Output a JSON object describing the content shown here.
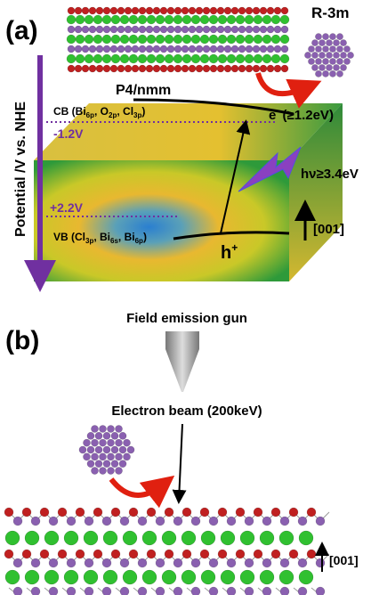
{
  "panel_a": {
    "label": "(a)",
    "phase_top": "R-3m",
    "axis_label": "Potential /V vs. NHE",
    "phase_slab": "P4/nmm",
    "cb_label": [
      "CB (Bi",
      "6p",
      ", O",
      "2p",
      ", Cl",
      "3p",
      ")"
    ],
    "cb_potential": "-1.2V",
    "electron": [
      "e",
      "-",
      " (≥1.2eV)"
    ],
    "photon": "hν≥3.4eV",
    "direction": "[001]",
    "vb_potential": "+2.2V",
    "vb_label": [
      "VB (Cl",
      "3p",
      ", Bi",
      "6s",
      ", Bi",
      "6p",
      ")"
    ],
    "hole": [
      "h",
      "+"
    ]
  },
  "panel_b": {
    "label": "(b)",
    "gun": "Field emission gun",
    "beam": "Electron beam (200keV)",
    "direction": "[001]"
  }
}
